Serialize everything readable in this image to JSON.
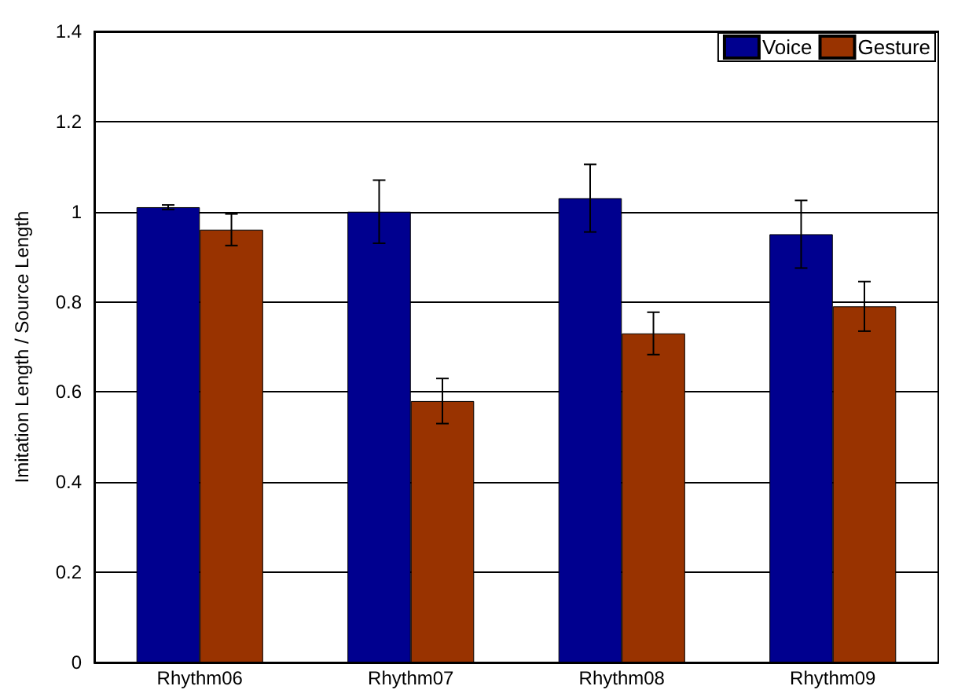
{
  "chart_data": {
    "type": "bar",
    "ylabel": "Imitation Length / Source Length",
    "categories": [
      "Rhythm06",
      "Rhythm07",
      "Rhythm08",
      "Rhythm09"
    ],
    "series": [
      {
        "name": "Voice",
        "color": "#00008f",
        "values": [
          1.01,
          1.0,
          1.03,
          0.95
        ],
        "errors": [
          0.005,
          0.07,
          0.075,
          0.075
        ]
      },
      {
        "name": "Gesture",
        "color": "#993300",
        "values": [
          0.96,
          0.58,
          0.73,
          0.79
        ],
        "errors": [
          0.035,
          0.05,
          0.047,
          0.055
        ]
      }
    ],
    "ylim": [
      0,
      1.4
    ],
    "yticks": [
      0,
      0.2,
      0.4,
      0.6,
      0.8,
      1,
      1.2,
      1.4
    ],
    "grid": "y",
    "legend": "top right"
  }
}
